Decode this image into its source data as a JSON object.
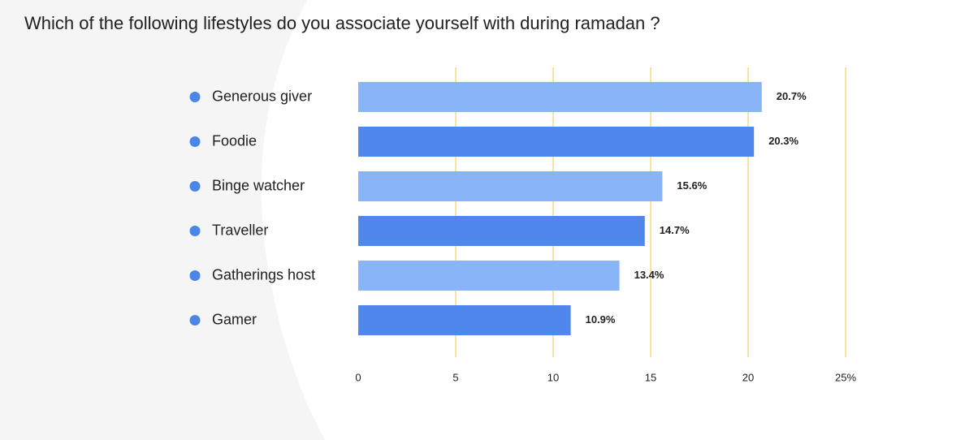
{
  "chart_data": {
    "type": "bar",
    "orientation": "horizontal",
    "title": "Which of the following lifestyles do you associate yourself with during ramadan ?",
    "categories": [
      "Generous giver",
      "Foodie",
      "Binge watcher",
      "Traveller",
      "Gatherings host",
      "Gamer"
    ],
    "values": [
      20.7,
      20.3,
      15.6,
      14.7,
      13.4,
      10.9
    ],
    "value_labels": [
      "20.7%",
      "20.3%",
      "15.6%",
      "14.7%",
      "13.4%",
      "10.9%"
    ],
    "colors": [
      "#8ab4f8",
      "#5087ec",
      "#8ab4f8",
      "#5087ec",
      "#8ab4f8",
      "#5087ec"
    ],
    "marker_color": "#4a86e8",
    "xlim": [
      0,
      25
    ],
    "xticks": [
      0,
      5,
      10,
      15,
      20,
      {
        "value": 25,
        "label": "25%"
      }
    ],
    "grid": true,
    "grid_color": "#f4c542"
  }
}
